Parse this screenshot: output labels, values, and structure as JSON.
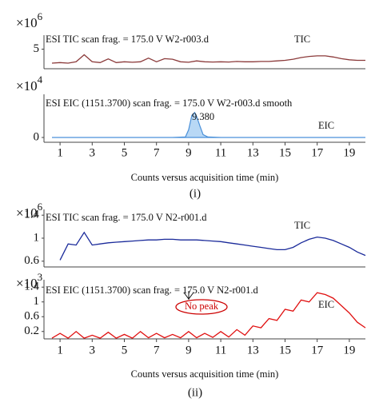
{
  "chart_data": [
    {
      "type": "line",
      "title": "ESI TIC scan frag. = 175.0 V W2-r003.d",
      "y_scale": "×10",
      "y_scale_power": "6",
      "xlim": [
        0,
        20
      ],
      "ylim": [
        4.3,
        5.5
      ],
      "yticks": [
        5
      ],
      "series": [
        {
          "name": "TIC",
          "color": "#8b3a3a",
          "x": [
            0.5,
            1,
            1.5,
            2,
            2.5,
            3,
            3.5,
            4,
            4.5,
            5,
            5.5,
            6,
            6.5,
            7,
            7.5,
            8,
            8.5,
            9,
            9.5,
            10,
            10.5,
            11,
            11.5,
            12,
            12.5,
            13,
            13.5,
            14,
            14.5,
            15,
            15.5,
            16,
            16.5,
            17,
            17.5,
            18,
            18.5,
            19,
            19.5,
            20
          ],
          "values": [
            4.5,
            4.52,
            4.5,
            4.55,
            4.8,
            4.55,
            4.52,
            4.65,
            4.52,
            4.55,
            4.53,
            4.55,
            4.68,
            4.55,
            4.66,
            4.64,
            4.55,
            4.53,
            4.58,
            4.55,
            4.54,
            4.55,
            4.54,
            4.56,
            4.55,
            4.55,
            4.56,
            4.56,
            4.58,
            4.6,
            4.64,
            4.7,
            4.74,
            4.76,
            4.76,
            4.72,
            4.66,
            4.62,
            4.6,
            4.6
          ]
        }
      ]
    },
    {
      "type": "area",
      "title": "ESI EIC (1151.3700) scan frag. = 175.0 V W2-r003.d smooth",
      "y_scale": "×10",
      "y_scale_power": "4",
      "xlim": [
        0,
        20
      ],
      "ylim": [
        -0.5,
        4.5
      ],
      "yticks": [
        0
      ],
      "xticks": [
        1,
        3,
        5,
        7,
        9,
        11,
        13,
        15,
        17,
        19
      ],
      "x_label": "Counts versus acquisition time (min)",
      "panel_label": "(i)",
      "annotation": "9.380",
      "series": [
        {
          "name": "EIC",
          "color": "#4a90d9",
          "fill": "#b8d8f5",
          "x": [
            0.5,
            1,
            2,
            3,
            4,
            5,
            6,
            7,
            8,
            8.8,
            9.0,
            9.2,
            9.38,
            9.5,
            9.7,
            9.9,
            10.2,
            11,
            12,
            13,
            14,
            15,
            16,
            17,
            18,
            19,
            20
          ],
          "values": [
            0,
            0,
            0,
            0,
            0,
            0,
            0,
            0,
            0,
            0.05,
            0.8,
            2.3,
            2.6,
            2.2,
            1.2,
            0.3,
            0.05,
            0,
            0,
            0,
            0,
            0,
            0,
            0,
            0,
            0,
            0
          ]
        }
      ]
    },
    {
      "type": "line",
      "title": "ESI TIC scan frag. = 175.0 V N2-r001.d",
      "y_scale": "×10",
      "y_scale_power": "6",
      "xlim": [
        0,
        20
      ],
      "ylim": [
        0.5,
        1.5
      ],
      "yticks": [
        0.6,
        1,
        1.4
      ],
      "series": [
        {
          "name": "TIC",
          "color": "#1a2a9a",
          "x": [
            1,
            1.5,
            2,
            2.5,
            3,
            3.5,
            4,
            4.5,
            5,
            5.5,
            6,
            6.5,
            7,
            7.5,
            8,
            8.5,
            9,
            9.5,
            10,
            10.5,
            11,
            11.5,
            12,
            12.5,
            13,
            13.5,
            14,
            14.5,
            15,
            15.5,
            16,
            16.5,
            17,
            17.5,
            18,
            18.5,
            19,
            19.5,
            20
          ],
          "values": [
            0.62,
            0.9,
            0.88,
            1.1,
            0.88,
            0.9,
            0.92,
            0.93,
            0.94,
            0.95,
            0.96,
            0.97,
            0.97,
            0.98,
            0.98,
            0.97,
            0.97,
            0.97,
            0.96,
            0.95,
            0.94,
            0.92,
            0.9,
            0.88,
            0.86,
            0.84,
            0.82,
            0.8,
            0.8,
            0.84,
            0.92,
            0.98,
            1.02,
            1.0,
            0.96,
            0.9,
            0.84,
            0.76,
            0.7
          ]
        }
      ]
    },
    {
      "type": "line",
      "title": "ESI EIC (1151.3700) scan frag. = 175.0 V N2-r001.d",
      "y_scale": "×10",
      "y_scale_power": "3",
      "xlim": [
        0,
        20
      ],
      "ylim": [
        0,
        1.6
      ],
      "yticks": [
        0.2,
        0.6,
        1,
        1.4
      ],
      "xticks": [
        1,
        3,
        5,
        7,
        9,
        11,
        13,
        15,
        17,
        19
      ],
      "x_label": "Counts versus acquisition time (min)",
      "panel_label": "(ii)",
      "annotation": "No peak",
      "series": [
        {
          "name": "EIC",
          "color": "#e01010",
          "x": [
            0.5,
            1,
            1.5,
            2,
            2.5,
            3,
            3.5,
            4,
            4.5,
            5,
            5.5,
            6,
            6.5,
            7,
            7.5,
            8,
            8.5,
            9,
            9.5,
            10,
            10.5,
            11,
            11.5,
            12,
            12.5,
            13,
            13.5,
            14,
            14.5,
            15,
            15.5,
            16,
            16.5,
            17,
            17.5,
            18,
            18.5,
            19,
            19.5,
            20
          ],
          "values": [
            0.02,
            0.15,
            0.02,
            0.2,
            0.02,
            0.1,
            0.02,
            0.18,
            0.02,
            0.12,
            0.02,
            0.2,
            0.03,
            0.15,
            0.03,
            0.12,
            0.03,
            0.2,
            0.03,
            0.15,
            0.04,
            0.2,
            0.05,
            0.25,
            0.1,
            0.35,
            0.3,
            0.55,
            0.5,
            0.8,
            0.75,
            1.05,
            1.0,
            1.25,
            1.2,
            1.1,
            0.9,
            0.7,
            0.45,
            0.3
          ]
        }
      ]
    }
  ]
}
